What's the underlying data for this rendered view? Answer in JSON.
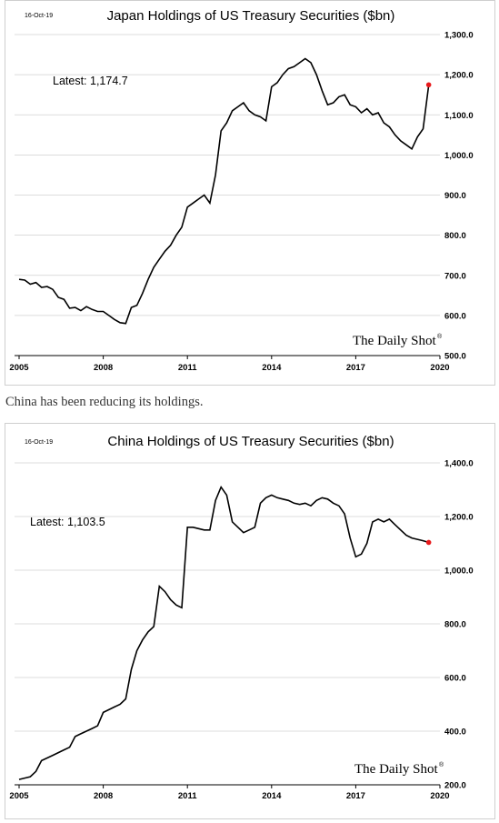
{
  "caption": "China has been reducing its holdings.",
  "chart_data": [
    {
      "type": "line",
      "date_stamp": "16-Oct-19",
      "title": "Japan Holdings of US Treasury Securities ($bn)",
      "annotation": "Latest:  1,174.7",
      "brand": "The Daily Shot",
      "brand_mark": "®",
      "xticks": [
        "2005",
        "2008",
        "2011",
        "2014",
        "2017",
        "2020"
      ],
      "yticks": [
        "1,300.0",
        "1,200.0",
        "1,100.0",
        "1,000.0",
        "900.0",
        "800.0",
        "700.0",
        "600.0",
        "500.0"
      ],
      "xlim": [
        2005,
        2020
      ],
      "ylim": [
        500,
        1300
      ],
      "yaxis_position": "right",
      "grid": "horizontal",
      "line_color": "#000000",
      "latest_marker_color": "#e8191b",
      "x": [
        2005.0,
        2005.2,
        2005.4,
        2005.6,
        2005.8,
        2006.0,
        2006.2,
        2006.4,
        2006.6,
        2006.8,
        2007.0,
        2007.2,
        2007.4,
        2007.6,
        2007.8,
        2008.0,
        2008.2,
        2008.4,
        2008.6,
        2008.8,
        2009.0,
        2009.2,
        2009.4,
        2009.6,
        2009.8,
        2010.0,
        2010.2,
        2010.4,
        2010.6,
        2010.8,
        2011.0,
        2011.2,
        2011.4,
        2011.6,
        2011.8,
        2012.0,
        2012.2,
        2012.4,
        2012.6,
        2012.8,
        2013.0,
        2013.2,
        2013.4,
        2013.6,
        2013.8,
        2014.0,
        2014.2,
        2014.4,
        2014.6,
        2014.8,
        2015.0,
        2015.2,
        2015.4,
        2015.6,
        2015.8,
        2016.0,
        2016.2,
        2016.4,
        2016.6,
        2016.8,
        2017.0,
        2017.2,
        2017.4,
        2017.6,
        2017.8,
        2018.0,
        2018.2,
        2018.4,
        2018.6,
        2018.8,
        2019.0,
        2019.2,
        2019.4,
        2019.6
      ],
      "values": [
        690,
        688,
        678,
        682,
        670,
        672,
        665,
        645,
        640,
        618,
        620,
        612,
        622,
        615,
        610,
        610,
        600,
        590,
        582,
        580,
        620,
        625,
        655,
        690,
        720,
        740,
        760,
        775,
        800,
        820,
        870,
        880,
        890,
        900,
        880,
        950,
        1060,
        1080,
        1110,
        1120,
        1130,
        1110,
        1100,
        1095,
        1085,
        1170,
        1180,
        1200,
        1215,
        1220,
        1230,
        1240,
        1230,
        1200,
        1160,
        1125,
        1130,
        1145,
        1150,
        1125,
        1120,
        1105,
        1115,
        1100,
        1105,
        1080,
        1070,
        1050,
        1035,
        1025,
        1015,
        1045,
        1065,
        1174.7
      ]
    },
    {
      "type": "line",
      "date_stamp": "16-Oct-19",
      "title": "China Holdings of US Treasury Securities ($bn)",
      "annotation": "Latest:  1,103.5",
      "brand": "The Daily Shot",
      "brand_mark": "®",
      "xticks": [
        "2005",
        "2008",
        "2011",
        "2014",
        "2017",
        "2020"
      ],
      "yticks": [
        "1,400.0",
        "1,200.0",
        "1,000.0",
        "800.0",
        "600.0",
        "400.0",
        "200.0"
      ],
      "xlim": [
        2005,
        2020
      ],
      "ylim": [
        200,
        1400
      ],
      "yaxis_position": "right",
      "grid": "horizontal",
      "line_color": "#000000",
      "latest_marker_color": "#e8191b",
      "x": [
        2005.0,
        2005.2,
        2005.4,
        2005.6,
        2005.8,
        2006.0,
        2006.2,
        2006.4,
        2006.6,
        2006.8,
        2007.0,
        2007.2,
        2007.4,
        2007.6,
        2007.8,
        2008.0,
        2008.2,
        2008.4,
        2008.6,
        2008.8,
        2009.0,
        2009.2,
        2009.4,
        2009.6,
        2009.8,
        2010.0,
        2010.2,
        2010.4,
        2010.6,
        2010.8,
        2011.0,
        2011.2,
        2011.4,
        2011.6,
        2011.8,
        2012.0,
        2012.2,
        2012.4,
        2012.6,
        2012.8,
        2013.0,
        2013.2,
        2013.4,
        2013.6,
        2013.8,
        2014.0,
        2014.2,
        2014.4,
        2014.6,
        2014.8,
        2015.0,
        2015.2,
        2015.4,
        2015.6,
        2015.8,
        2016.0,
        2016.2,
        2016.4,
        2016.6,
        2016.8,
        2017.0,
        2017.2,
        2017.4,
        2017.6,
        2017.8,
        2018.0,
        2018.2,
        2018.4,
        2018.6,
        2018.8,
        2019.0,
        2019.2,
        2019.4,
        2019.6
      ],
      "values": [
        220,
        225,
        230,
        250,
        290,
        300,
        310,
        320,
        330,
        340,
        380,
        390,
        400,
        410,
        420,
        470,
        480,
        490,
        500,
        520,
        630,
        700,
        740,
        770,
        790,
        940,
        920,
        890,
        870,
        860,
        1160,
        1160,
        1155,
        1150,
        1150,
        1260,
        1310,
        1280,
        1180,
        1160,
        1140,
        1150,
        1160,
        1250,
        1270,
        1280,
        1270,
        1265,
        1260,
        1250,
        1245,
        1250,
        1240,
        1260,
        1270,
        1265,
        1250,
        1240,
        1210,
        1120,
        1050,
        1060,
        1100,
        1180,
        1190,
        1180,
        1190,
        1170,
        1150,
        1130,
        1120,
        1115,
        1110,
        1103.5
      ]
    }
  ]
}
